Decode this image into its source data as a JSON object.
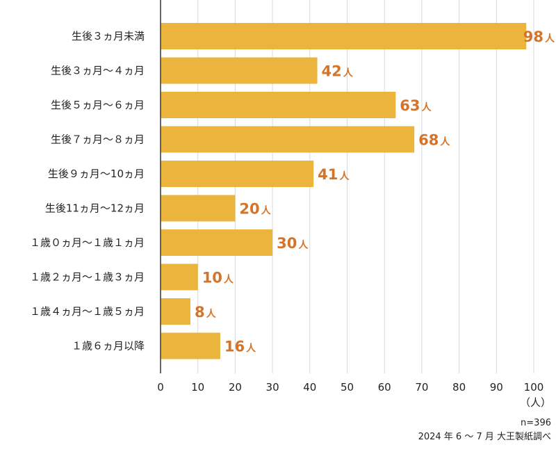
{
  "chart_data": {
    "type": "bar",
    "orientation": "horizontal",
    "categories": [
      "生後３ヵ月未満",
      "生後３ヵ月～４ヵ月",
      "生後５ヵ月～６ヵ月",
      "生後７ヵ月～８ヵ月",
      "生後９ヵ月～10ヵ月",
      "生後11ヵ月～12ヵ月",
      "１歳０ヵ月～１歳１ヵ月",
      "１歳２ヵ月～１歳３ヵ月",
      "１歳４ヵ月～１歳５ヵ月",
      "１歳６ヵ月以降"
    ],
    "values": [
      98,
      42,
      63,
      68,
      41,
      20,
      30,
      10,
      8,
      16
    ],
    "value_unit": "人",
    "xlim": [
      0,
      100
    ],
    "xticks": [
      0,
      10,
      20,
      30,
      40,
      50,
      60,
      70,
      80,
      90,
      100
    ],
    "x_unit_label": "（人）",
    "grid": true,
    "bar_color": "#ebb43c",
    "label_color": "#d4742a"
  },
  "notes": {
    "sample": "n=396",
    "source": "2024 年 6 ～ 7 月 大王製紙調べ"
  }
}
